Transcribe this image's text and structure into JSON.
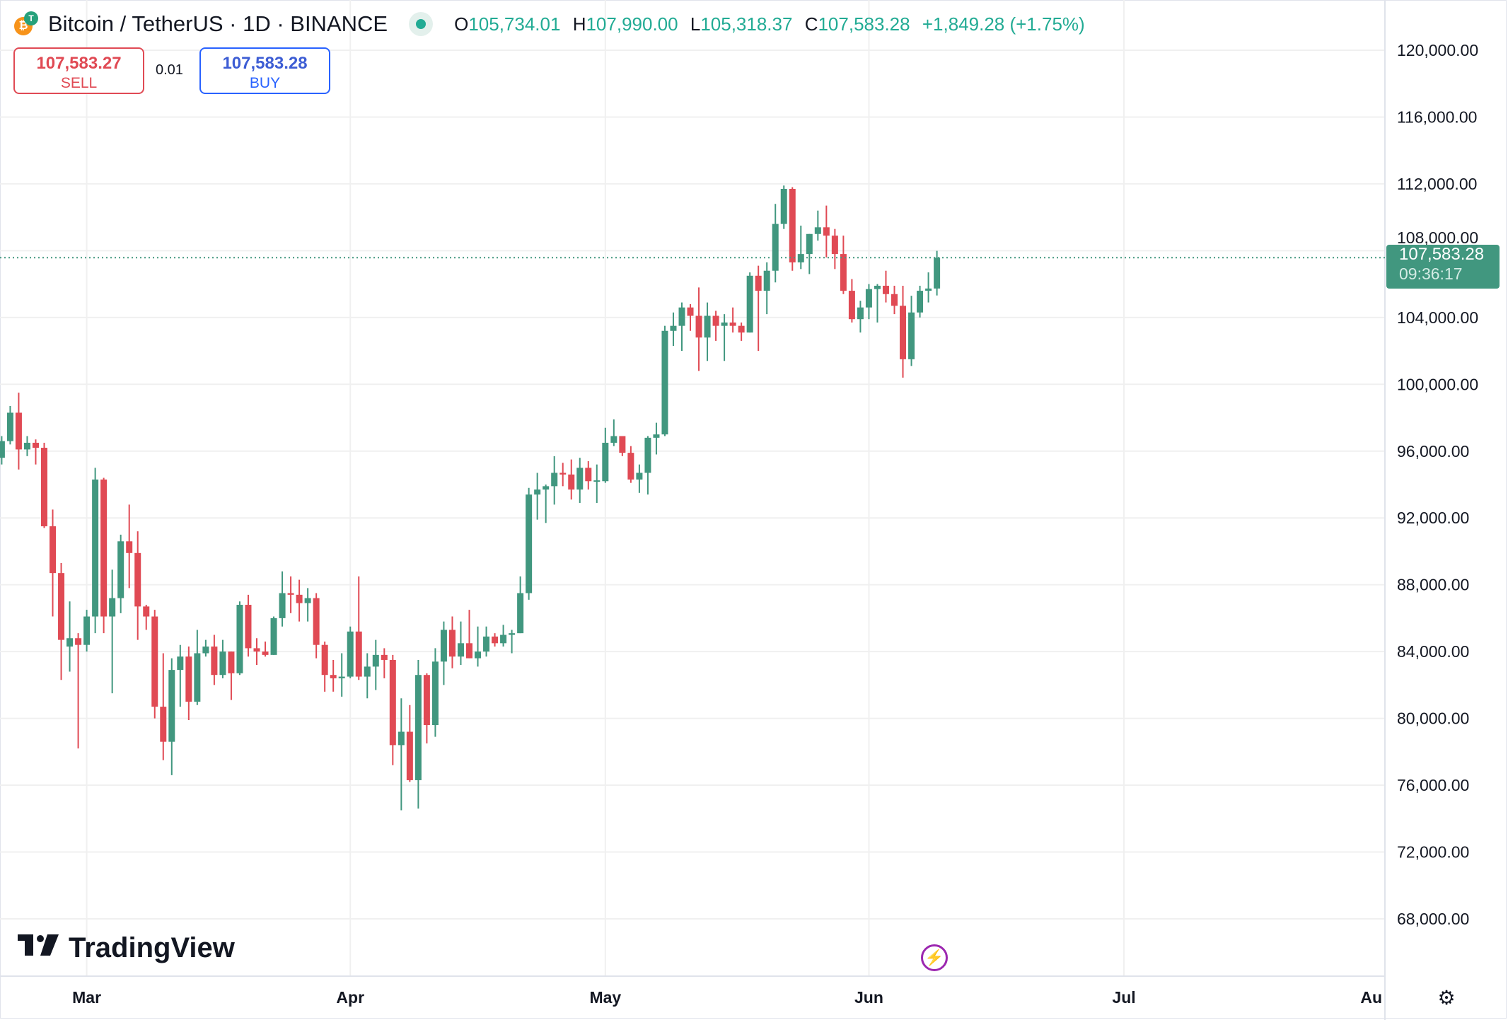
{
  "header": {
    "title": "Bitcoin / TetherUS · 1D · BINANCE",
    "ohlc": [
      {
        "key": "O",
        "value": "105,734.01"
      },
      {
        "key": "H",
        "value": "107,990.00"
      },
      {
        "key": "L",
        "value": "105,318.37"
      },
      {
        "key": "C",
        "value": "107,583.28"
      }
    ],
    "change": "+1,849.28 (+1.75%)"
  },
  "trade": {
    "sell_price": "107,583.27",
    "sell_label": "SELL",
    "spread": "0.01",
    "buy_price": "107,583.28",
    "buy_label": "BUY"
  },
  "last_price": {
    "price": "107,583.28",
    "countdown": "09:36:17",
    "value": 107583.28
  },
  "logo": {
    "text": "TradingView",
    "mark": "TV"
  },
  "colors": {
    "up": "#41977f",
    "down": "#e04a54",
    "grid": "#f0f3fa",
    "text": "#131722"
  },
  "chart_data": {
    "type": "candlestick",
    "title": "Bitcoin / TetherUS · 1D · BINANCE",
    "ylim": [
      66000,
      122000
    ],
    "y_ticks": [
      "120,000.00",
      "116,000.00",
      "112,000.00",
      "108,000.00",
      "104,000.00",
      "100,000.00",
      "96,000.00",
      "92,000.00",
      "88,000.00",
      "84,000.00",
      "80,000.00",
      "76,000.00",
      "72,000.00",
      "68,000.00"
    ],
    "y_tick_values": [
      120000,
      116000,
      112000,
      108000,
      104000,
      100000,
      96000,
      92000,
      88000,
      84000,
      80000,
      76000,
      72000,
      68000
    ],
    "x_ticks": [
      {
        "label": "Mar",
        "index": 10
      },
      {
        "label": "Apr",
        "index": 41
      },
      {
        "label": "May",
        "index": 71
      },
      {
        "label": "Jun",
        "index": 102
      },
      {
        "label": "Jul",
        "index": 132
      },
      {
        "label": "Au",
        "index": 163
      }
    ],
    "candles": [
      [
        95600,
        96900,
        95200,
        96600
      ],
      [
        96600,
        98700,
        96400,
        98300
      ],
      [
        98300,
        99500,
        94900,
        96100
      ],
      [
        96100,
        96900,
        95700,
        96500
      ],
      [
        96500,
        96700,
        95200,
        96200
      ],
      [
        96200,
        96500,
        91400,
        91500
      ],
      [
        91500,
        92500,
        86100,
        88700
      ],
      [
        88700,
        89300,
        82300,
        84700
      ],
      [
        84300,
        87000,
        82800,
        84800
      ],
      [
        84800,
        85100,
        78200,
        84400
      ],
      [
        84400,
        86500,
        84000,
        86100
      ],
      [
        86100,
        95000,
        85100,
        94300
      ],
      [
        94300,
        94400,
        85100,
        86100
      ],
      [
        86100,
        88900,
        81500,
        87200
      ],
      [
        87200,
        91000,
        86300,
        90600
      ],
      [
        90600,
        92800,
        87800,
        89900
      ],
      [
        89900,
        91200,
        84700,
        86700
      ],
      [
        86700,
        86800,
        85300,
        86100
      ],
      [
        86100,
        86500,
        80000,
        80700
      ],
      [
        80700,
        83900,
        77500,
        78600
      ],
      [
        78600,
        83600,
        76600,
        82900
      ],
      [
        82900,
        84400,
        80700,
        83700
      ],
      [
        83700,
        84300,
        79900,
        81000
      ],
      [
        81000,
        85300,
        80800,
        83900
      ],
      [
        83900,
        84700,
        83700,
        84300
      ],
      [
        84300,
        85000,
        82000,
        82600
      ],
      [
        82600,
        84700,
        82400,
        84000
      ],
      [
        84000,
        84000,
        81100,
        82700
      ],
      [
        82700,
        87000,
        82600,
        86800
      ],
      [
        86800,
        87400,
        83700,
        84200
      ],
      [
        84200,
        84800,
        83200,
        84000
      ],
      [
        84000,
        84600,
        83700,
        83800
      ],
      [
        83800,
        86100,
        83800,
        86000
      ],
      [
        86000,
        88800,
        85500,
        87500
      ],
      [
        87500,
        88500,
        86300,
        87400
      ],
      [
        87400,
        88300,
        85800,
        86900
      ],
      [
        86900,
        87800,
        85800,
        87200
      ],
      [
        87200,
        87500,
        83600,
        84400
      ],
      [
        84400,
        84600,
        81600,
        82600
      ],
      [
        82600,
        83500,
        81600,
        82400
      ],
      [
        82400,
        83900,
        81300,
        82500
      ],
      [
        82500,
        85500,
        82400,
        85200
      ],
      [
        85200,
        88500,
        82300,
        82500
      ],
      [
        82500,
        83900,
        81200,
        83100
      ],
      [
        83100,
        84700,
        81700,
        83800
      ],
      [
        83800,
        84200,
        82400,
        83500
      ],
      [
        83500,
        83800,
        77200,
        78400
      ],
      [
        78400,
        81200,
        74500,
        79200
      ],
      [
        79200,
        80800,
        76200,
        76300
      ],
      [
        76300,
        83500,
        74600,
        82600
      ],
      [
        82600,
        82700,
        78500,
        79600
      ],
      [
        79600,
        84200,
        78900,
        83400
      ],
      [
        83400,
        85800,
        82000,
        85300
      ],
      [
        85300,
        86100,
        83000,
        83700
      ],
      [
        83700,
        85800,
        83200,
        84500
      ],
      [
        84500,
        86500,
        83600,
        83600
      ],
      [
        83600,
        85500,
        83100,
        84000
      ],
      [
        84000,
        85500,
        83700,
        84900
      ],
      [
        84900,
        85100,
        84300,
        84500
      ],
      [
        84500,
        85600,
        84300,
        85000
      ],
      [
        85000,
        85300,
        83900,
        85100
      ],
      [
        85100,
        88500,
        85100,
        87500
      ],
      [
        87500,
        93800,
        87100,
        93400
      ],
      [
        93400,
        94700,
        91900,
        93700
      ],
      [
        93700,
        94000,
        91700,
        93900
      ],
      [
        93900,
        95700,
        92800,
        94700
      ],
      [
        94700,
        95300,
        93900,
        94600
      ],
      [
        94600,
        95500,
        93100,
        93700
      ],
      [
        93700,
        95600,
        92900,
        95000
      ],
      [
        95000,
        95400,
        93700,
        94200
      ],
      [
        94200,
        95200,
        92900,
        94250
      ],
      [
        94200,
        97400,
        94100,
        96500
      ],
      [
        96500,
        97900,
        96300,
        96900
      ],
      [
        96900,
        96900,
        95700,
        95900
      ],
      [
        95900,
        96300,
        94100,
        94300
      ],
      [
        94300,
        95200,
        93500,
        94700
      ],
      [
        94700,
        96900,
        93400,
        96800
      ],
      [
        96800,
        97700,
        95800,
        97000
      ],
      [
        97000,
        103500,
        96900,
        103200
      ],
      [
        103200,
        104300,
        102300,
        103500
      ],
      [
        103500,
        104900,
        102000,
        104600
      ],
      [
        104600,
        104800,
        103200,
        104100
      ],
      [
        104100,
        105800,
        100800,
        102800
      ],
      [
        102800,
        104900,
        101400,
        104100
      ],
      [
        104100,
        104400,
        102600,
        103500
      ],
      [
        103500,
        104200,
        101400,
        103700
      ],
      [
        103700,
        104600,
        103100,
        103500
      ],
      [
        103500,
        103700,
        102600,
        103100
      ],
      [
        103100,
        106700,
        103100,
        106500
      ],
      [
        106500,
        107100,
        102000,
        105600
      ],
      [
        105600,
        107300,
        104200,
        106800
      ],
      [
        106800,
        110800,
        106100,
        109600
      ],
      [
        109600,
        111900,
        109300,
        111700
      ],
      [
        111700,
        111800,
        106800,
        107300
      ],
      [
        107300,
        109500,
        106900,
        107800
      ],
      [
        107800,
        109000,
        106600,
        109000
      ],
      [
        109000,
        110400,
        108600,
        109400
      ],
      [
        109400,
        110700,
        107600,
        108900
      ],
      [
        108900,
        109300,
        106900,
        107800
      ],
      [
        107800,
        108900,
        105400,
        105600
      ],
      [
        105600,
        106300,
        103700,
        103900
      ],
      [
        103900,
        105000,
        103100,
        104600
      ],
      [
        104600,
        106000,
        103900,
        105700
      ],
      [
        105700,
        106000,
        103700,
        105900
      ],
      [
        105900,
        106800,
        104900,
        105400
      ],
      [
        105400,
        105900,
        104200,
        104700
      ],
      [
        104700,
        105900,
        100400,
        101500
      ],
      [
        101500,
        105300,
        101100,
        104300
      ],
      [
        104300,
        105900,
        104000,
        105600
      ],
      [
        105600,
        106700,
        104900,
        105734.01
      ],
      [
        105734.01,
        107990,
        105318.37,
        107583.28
      ]
    ]
  }
}
